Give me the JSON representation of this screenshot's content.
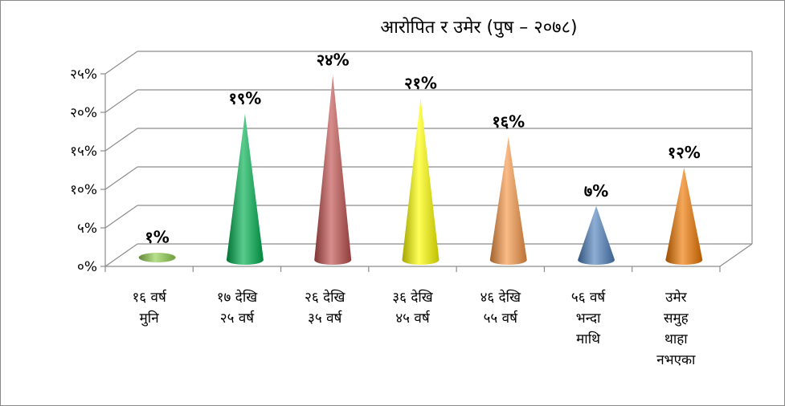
{
  "chart_data": {
    "type": "bar",
    "title": "आरोपित र उमेर (पुष – २०७८)",
    "categories": [
      [
        "१६ वर्ष",
        "मुनि"
      ],
      [
        "१७ देखि",
        "२५ वर्ष"
      ],
      [
        "२६ देखि",
        "३५ वर्ष"
      ],
      [
        "३६ देखि",
        "४५ वर्ष"
      ],
      [
        "४६ देखि",
        "५५ वर्ष"
      ],
      [
        "५६ वर्ष",
        "भन्दा",
        "माथि"
      ],
      [
        "उमेर",
        "समुह",
        "थाहा",
        "नभएका"
      ]
    ],
    "values": [
      1,
      19,
      24,
      21,
      16,
      7,
      12
    ],
    "value_labels": [
      "१%",
      "१९%",
      "२४%",
      "२१%",
      "१६%",
      "७%",
      "१२%"
    ],
    "y_ticks": [
      0,
      5,
      10,
      15,
      20,
      25
    ],
    "y_tick_labels": [
      "०%",
      "५%",
      "१०%",
      "१५%",
      "२०%",
      "२५%"
    ],
    "ylim": [
      0,
      25
    ],
    "xlabel": "",
    "ylabel": "",
    "grid": true,
    "legend": "none",
    "colors": [
      "#92d050",
      "#00b050",
      "#c0504d",
      "#ffff00",
      "#f79646",
      "#4f81bd",
      "#f07800"
    ]
  }
}
